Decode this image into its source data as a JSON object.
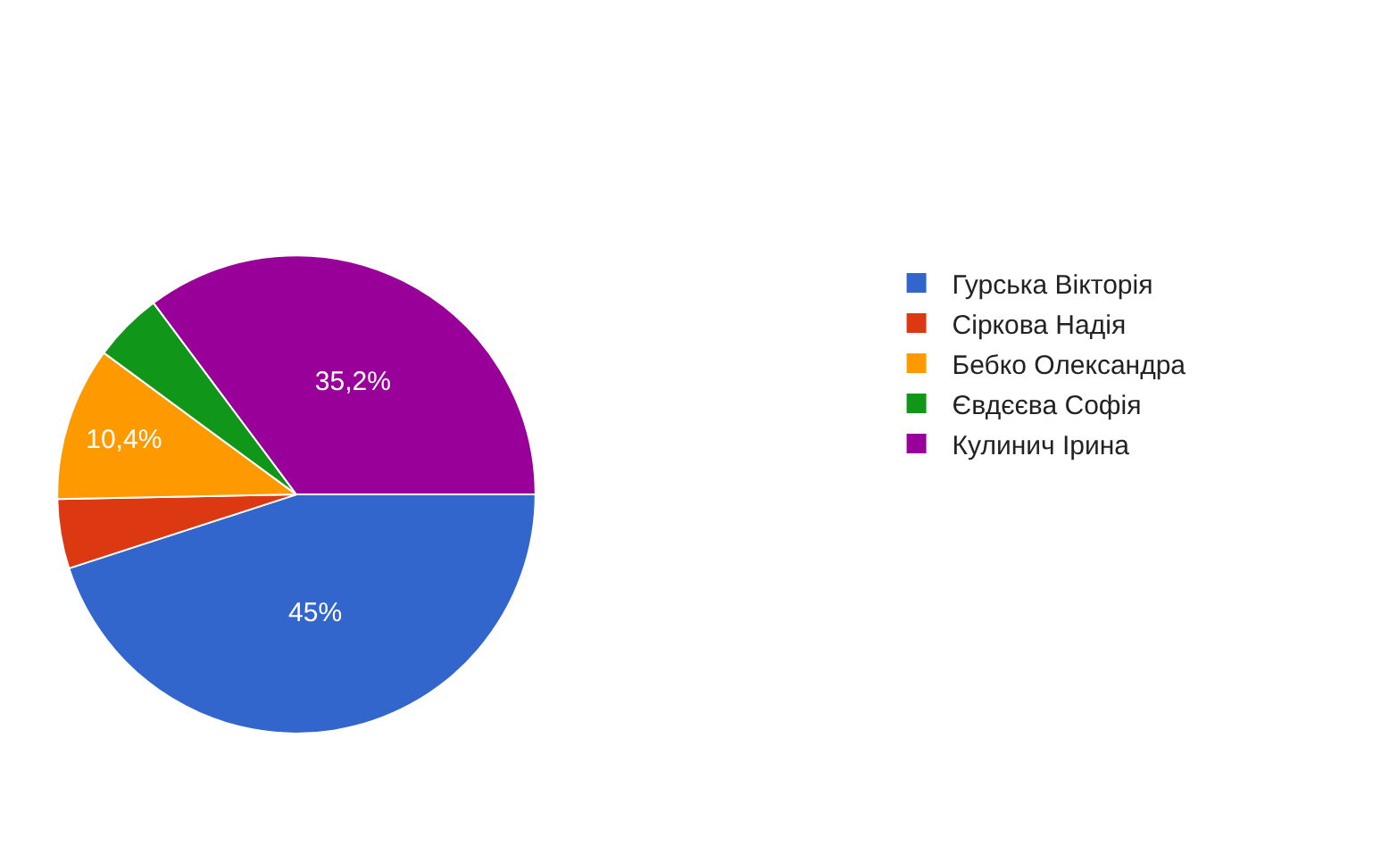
{
  "chart_data": {
    "type": "pie",
    "categories": [
      "Гурська Вікторія",
      "Сіркова Надія",
      "Бебко Олександра",
      "Євдєєва Софія",
      "Кулинич Ірина"
    ],
    "values": [
      45,
      4.7,
      10.4,
      4.7,
      35.2
    ],
    "value_labels": [
      "45%",
      null,
      "10,4%",
      null,
      "35,2%"
    ],
    "colors": [
      "#3366cc",
      "#dc3912",
      "#ff9900",
      "#109618",
      "#990099"
    ],
    "legend": "right"
  }
}
